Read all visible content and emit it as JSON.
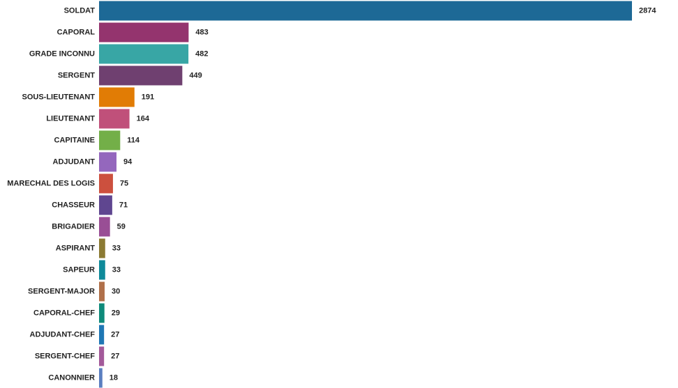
{
  "chart_data": {
    "type": "bar",
    "orientation": "horizontal",
    "title": "",
    "xlabel": "",
    "ylabel": "",
    "grid": false,
    "legend": "none",
    "categories": [
      "SOLDAT",
      "CAPORAL",
      "GRADE INCONNU",
      "SERGENT",
      "SOUS-LIEUTENANT",
      "LIEUTENANT",
      "CAPITAINE",
      "ADJUDANT",
      "MARECHAL DES LOGIS",
      "CHASSEUR",
      "BRIGADIER",
      "ASPIRANT",
      "SAPEUR",
      "SERGENT-MAJOR",
      "CAPORAL-CHEF",
      "ADJUDANT-CHEF",
      "SERGENT-CHEF",
      "CANONNIER"
    ],
    "values": [
      2874,
      483,
      482,
      449,
      191,
      164,
      114,
      94,
      75,
      71,
      59,
      33,
      33,
      30,
      29,
      27,
      27,
      18
    ],
    "colors": [
      "#1d6996",
      "#94346e",
      "#38a6a5",
      "#6f4070",
      "#e17c05",
      "#c0507a",
      "#73af48",
      "#9467bd",
      "#cc503e",
      "#5f4690",
      "#994e95",
      "#8b7a33",
      "#0f8a9a",
      "#b0704a",
      "#0f8a7a",
      "#1f77b4",
      "#a35a9a",
      "#5b7fc0"
    ],
    "xlim": [
      0,
      2874
    ]
  }
}
